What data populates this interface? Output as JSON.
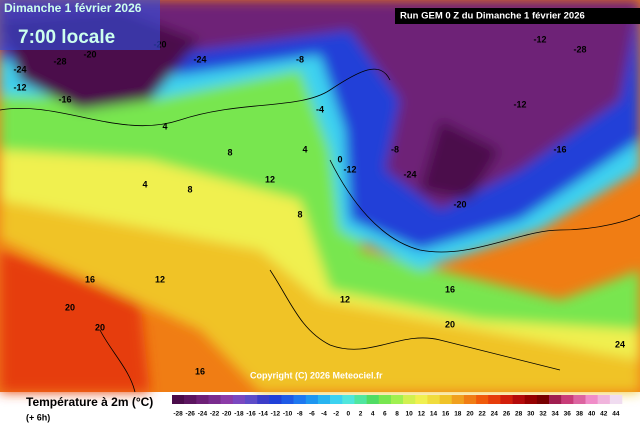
{
  "header": {
    "date": "Dimanche 1 février 2026",
    "time": "7:00 locale",
    "run": "Run GEM 0 Z du Dimanche 1 février 2026"
  },
  "copyright": "Copyright (C) 2026 Meteociel.fr",
  "legend": {
    "title": "Température à 2m (°C)",
    "step": "(+ 6h)",
    "ticks": [
      -28,
      -26,
      -24,
      -22,
      -20,
      -18,
      -16,
      -14,
      -12,
      -10,
      -8,
      -6,
      -4,
      -2,
      0,
      2,
      4,
      6,
      8,
      10,
      12,
      14,
      16,
      18,
      20,
      22,
      24,
      26,
      28,
      30,
      32,
      34,
      36,
      38,
      40,
      42,
      44
    ],
    "colors": [
      "#4b0c4b",
      "#5c1560",
      "#6e2077",
      "#7a2c8e",
      "#8c3ba8",
      "#7a48c0",
      "#5e4cc8",
      "#3c3cc8",
      "#2040d8",
      "#1e5ae6",
      "#1e78f0",
      "#1e96f0",
      "#28b4f0",
      "#3cd2f0",
      "#50e6dc",
      "#50e6a0",
      "#50dc64",
      "#78e650",
      "#a0f050",
      "#d2f050",
      "#f0f050",
      "#f0dc3c",
      "#f0c328",
      "#f0a01e",
      "#f07d14",
      "#f05a0a",
      "#e63c0a",
      "#d21e0a",
      "#b40a0a",
      "#960000",
      "#780000",
      "#a01e50",
      "#c83c78",
      "#dc64a0",
      "#f08cc8",
      "#f0b4dc",
      "#f0dcf0"
    ]
  },
  "map_labels": [
    "-28",
    "-24",
    "-20",
    "-16",
    "-12",
    "-20",
    "-24",
    "-8",
    "-4",
    "4",
    "8",
    "4",
    "8",
    "12",
    "12",
    "16",
    "20",
    "20",
    "16",
    "-24",
    "-20",
    "-12",
    "-8",
    "0",
    "4",
    "-12",
    "-16",
    "12",
    "16",
    "20",
    "24",
    "-28",
    "-12",
    "8"
  ]
}
